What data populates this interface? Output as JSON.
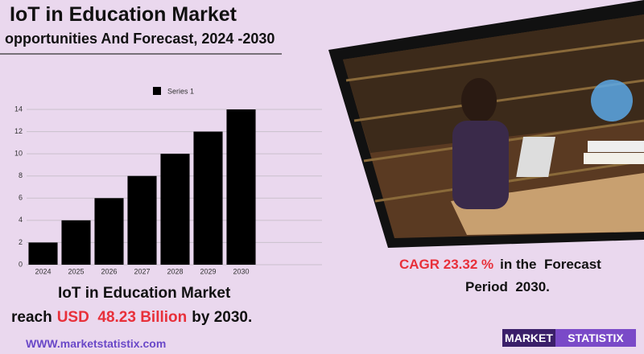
{
  "header": {
    "title": "IoT in Education Market",
    "subtitle": "opportunities And Forecast, 2024 -2030"
  },
  "chart_data": {
    "type": "bar",
    "categories": [
      "2024",
      "2025",
      "2026",
      "2027",
      "2028",
      "2029",
      "2030"
    ],
    "series": [
      {
        "name": "Series 1",
        "color": "#000000",
        "values": [
          2,
          4,
          6,
          8,
          10,
          12,
          14
        ]
      }
    ],
    "ylim": [
      0,
      14
    ],
    "yticks": [
      0,
      2,
      4,
      6,
      8,
      10,
      12,
      14
    ],
    "grid": true,
    "legend": "top"
  },
  "cagr": {
    "highlight": "CAGR 23.32 %",
    "text_1": "in the  Forecast",
    "text_2": "Period  2030."
  },
  "summary": {
    "line_1": "IoT in Education Market",
    "prefix": "reach",
    "highlight": "USD  48.23 Billion",
    "suffix": "by 2030."
  },
  "website": "WWW.marketstatistix.com",
  "logo": {
    "part_1": "MARKET",
    "part_2": "STATISTIX"
  }
}
